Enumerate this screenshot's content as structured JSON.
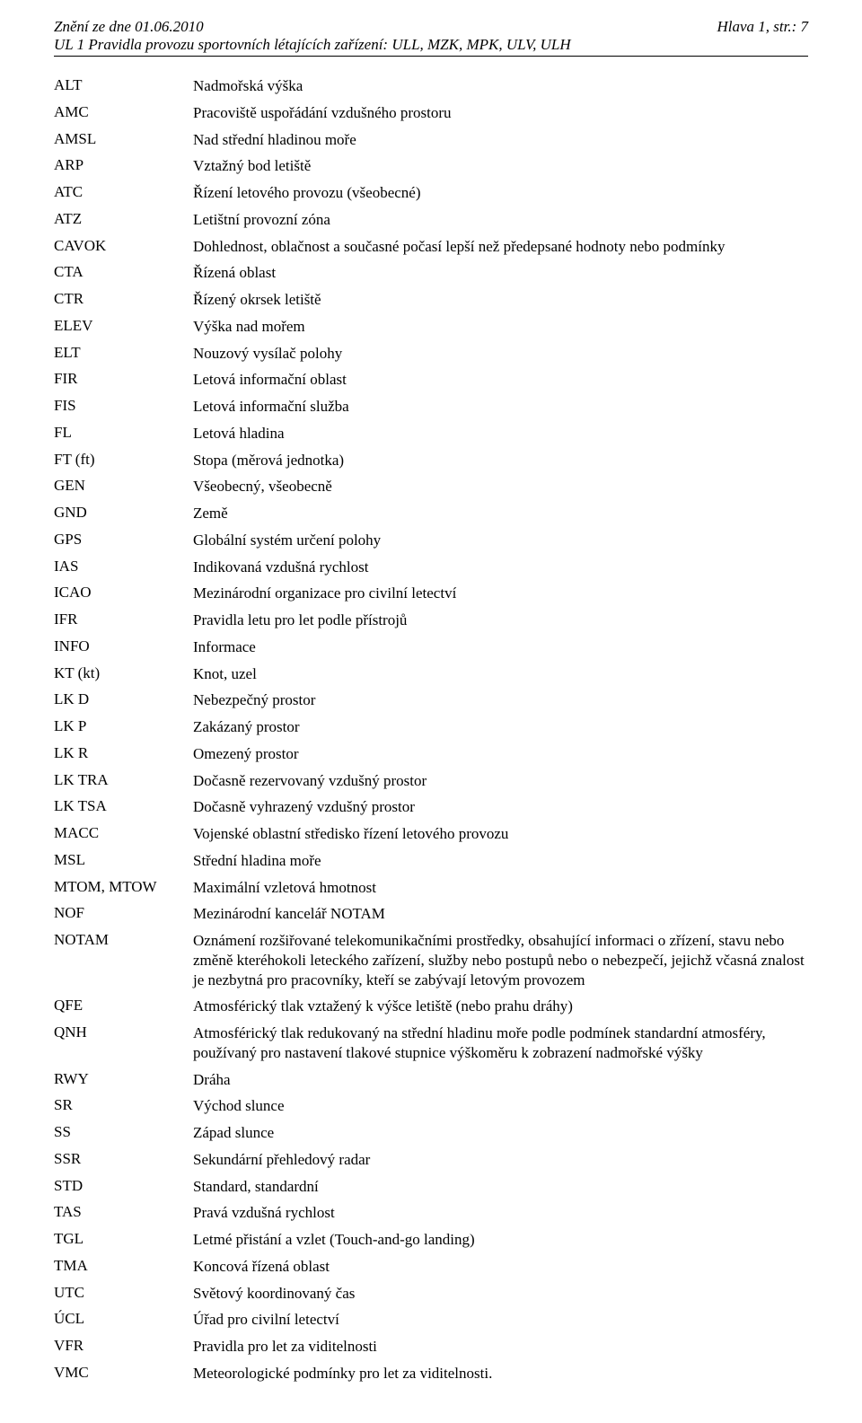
{
  "header": {
    "left": "Znění ze dne 01.06.2010",
    "right": "Hlava 1, str.: 7",
    "subtitle": "UL 1 Pravidla provozu sportovních létajících zařízení: ULL, MZK, MPK, ULV, ULH"
  },
  "rows": [
    {
      "abbr": "ALT",
      "def": "Nadmořská výška"
    },
    {
      "abbr": "AMC",
      "def": "Pracoviště uspořádání vzdušného prostoru"
    },
    {
      "abbr": "AMSL",
      "def": "Nad střední hladinou moře"
    },
    {
      "abbr": "ARP",
      "def": "Vztažný bod letiště"
    },
    {
      "abbr": "ATC",
      "def": "Řízení letového provozu (všeobecné)"
    },
    {
      "abbr": "ATZ",
      "def": "Letištní provozní zóna"
    },
    {
      "abbr": "CAVOK",
      "def": "Dohlednost, oblačnost a současné počasí lepší než předepsané hodnoty nebo podmínky"
    },
    {
      "abbr": "CTA",
      "def": "Řízená oblast"
    },
    {
      "abbr": "CTR",
      "def": "Řízený okrsek letiště"
    },
    {
      "abbr": "ELEV",
      "def": "Výška nad mořem"
    },
    {
      "abbr": "ELT",
      "def": "Nouzový vysílač polohy"
    },
    {
      "abbr": "FIR",
      "def": "Letová informační oblast"
    },
    {
      "abbr": "FIS",
      "def": "Letová informační služba"
    },
    {
      "abbr": "FL",
      "def": "Letová hladina"
    },
    {
      "abbr": "FT (ft)",
      "def": "Stopa (měrová jednotka)"
    },
    {
      "abbr": "GEN",
      "def": "Všeobecný, všeobecně"
    },
    {
      "abbr": "GND",
      "def": "Země"
    },
    {
      "abbr": "GPS",
      "def": "Globální systém určení polohy"
    },
    {
      "abbr": "IAS",
      "def": "Indikovaná vzdušná rychlost"
    },
    {
      "abbr": "ICAO",
      "def": "Mezinárodní organizace pro civilní letectví"
    },
    {
      "abbr": "IFR",
      "def": "Pravidla letu pro let podle přístrojů"
    },
    {
      "abbr": "INFO",
      "def": "Informace"
    },
    {
      "abbr": "KT (kt)",
      "def": "Knot, uzel"
    },
    {
      "abbr": "LK D",
      "def": "Nebezpečný prostor"
    },
    {
      "abbr": "LK P",
      "def": "Zakázaný prostor"
    },
    {
      "abbr": "LK R",
      "def": "Omezený prostor"
    },
    {
      "abbr": "LK TRA",
      "def": "Dočasně rezervovaný vzdušný prostor"
    },
    {
      "abbr": "LK TSA",
      "def": "Dočasně vyhrazený vzdušný prostor"
    },
    {
      "abbr": "MACC",
      "def": "Vojenské oblastní středisko řízení letového provozu"
    },
    {
      "abbr": "MSL",
      "def": "Střední hladina moře"
    },
    {
      "abbr": "MTOM, MTOW",
      "def": "Maximální vzletová hmotnost"
    },
    {
      "abbr": "NOF",
      "def": "Mezinárodní kancelář NOTAM"
    },
    {
      "abbr": "NOTAM",
      "def": "Oznámení rozšiřované telekomunikačními prostředky, obsahující informaci o zřízení, stavu nebo změně kteréhokoli leteckého zařízení, služby nebo postupů nebo o nebezpečí, jejichž včasná znalost je nezbytná pro pracovníky, kteří se zabývají letovým provozem"
    },
    {
      "abbr": "QFE",
      "def": "Atmosférický tlak vztažený k výšce letiště (nebo prahu dráhy)"
    },
    {
      "abbr": "QNH",
      "def": "Atmosférický tlak redukovaný na střední hladinu moře podle podmínek standardní atmosféry, používaný pro nastavení tlakové stupnice výškoměru k zobrazení nadmořské výšky"
    },
    {
      "abbr": "RWY",
      "def": "Dráha"
    },
    {
      "abbr": "SR",
      "def": "Východ slunce"
    },
    {
      "abbr": "SS",
      "def": "Západ slunce"
    },
    {
      "abbr": "SSR",
      "def": "Sekundární přehledový radar"
    },
    {
      "abbr": "STD",
      "def": "Standard, standardní"
    },
    {
      "abbr": "TAS",
      "def": "Pravá vzdušná rychlost"
    },
    {
      "abbr": "TGL",
      "def": "Letmé přistání a vzlet (Touch-and-go landing)"
    },
    {
      "abbr": "TMA",
      "def": "Koncová řízená oblast"
    },
    {
      "abbr": "UTC",
      "def": "Světový koordinovaný čas"
    },
    {
      "abbr": "ÚCL",
      "def": "Úřad pro civilní letectví"
    },
    {
      "abbr": "VFR",
      "def": "Pravidla pro let za viditelnosti"
    },
    {
      "abbr": "VMC",
      "def": "Meteorologické podmínky pro let za viditelnosti."
    }
  ]
}
